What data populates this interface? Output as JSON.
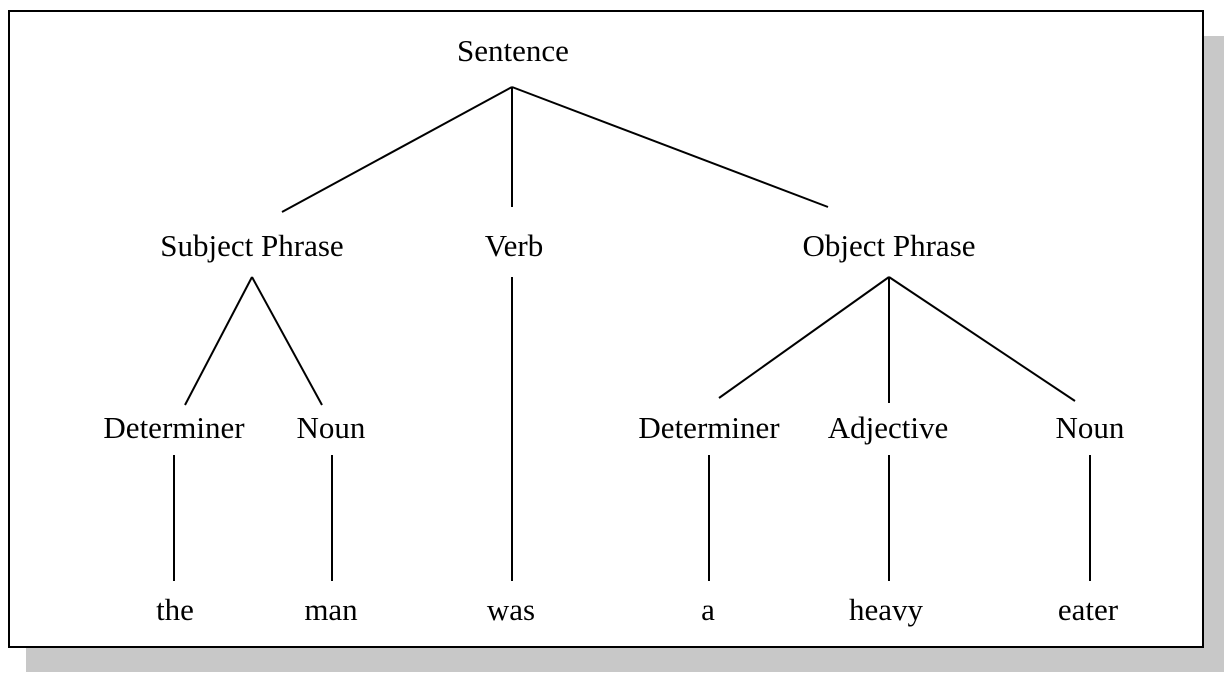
{
  "tree": {
    "root": "Sentence",
    "phrases": {
      "subject": "Subject Phrase",
      "verb": "Verb",
      "object": "Object Phrase"
    },
    "categories": {
      "subject_determiner": "Determiner",
      "subject_noun": "Noun",
      "object_determiner": "Determiner",
      "object_adjective": "Adjective",
      "object_noun": "Noun"
    },
    "words": {
      "the": "the",
      "man": "man",
      "was": "was",
      "a": "a",
      "heavy": "heavy",
      "eater": "eater"
    }
  }
}
